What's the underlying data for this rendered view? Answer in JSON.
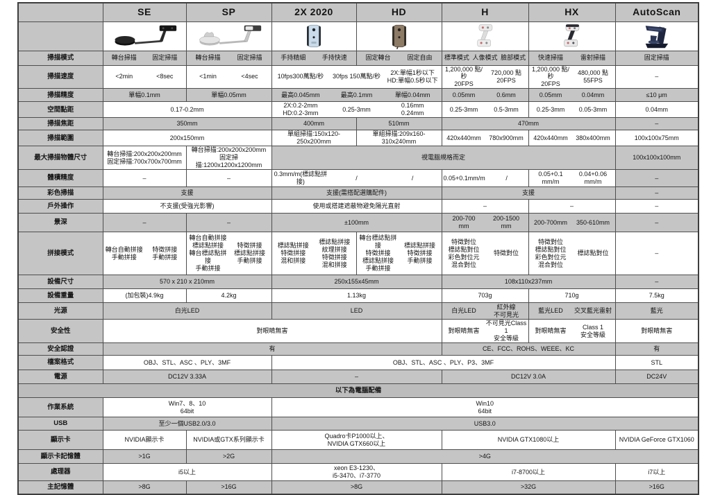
{
  "colors": {
    "row_gray": "#c5c5c5",
    "divider_gray": "#bcbcbc",
    "border": "#4d4d4d",
    "cell_white": "#ffffff"
  },
  "products": [
    {
      "name": "SE",
      "icon": "se-turntable-scanner-icon"
    },
    {
      "name": "SP",
      "icon": "sp-turntable-scanner-icon"
    },
    {
      "name": "2X 2020",
      "icon": "2x-handheld-scanner-icon"
    },
    {
      "name": "HD",
      "icon": "hd-handheld-scanner-icon"
    },
    {
      "name": "H",
      "icon": "h-handheld-scanner-icon"
    },
    {
      "name": "HX",
      "icon": "hx-handheld-scanner-icon"
    },
    {
      "name": "AutoScan",
      "icon": "autoscan-desktop-scanner-icon"
    }
  ],
  "spec_rows": [
    {
      "label": "掃描模式",
      "bg": "g",
      "cells": [
        {
          "span": 1,
          "blocks": [
            "轉台掃描",
            "固定掃描"
          ]
        },
        {
          "span": 1,
          "blocks": [
            "轉台掃描",
            "固定掃描"
          ]
        },
        {
          "span": 1,
          "blocks": [
            "手持精細",
            "手持快速"
          ]
        },
        {
          "span": 1,
          "blocks": [
            "固定轉台",
            "固定自由"
          ]
        },
        {
          "span": 1,
          "blocks": [
            "標準模式",
            "人像模式",
            "臉部模式"
          ]
        },
        {
          "span": 1,
          "blocks": [
            "快速掃描",
            "雷射掃描"
          ]
        },
        {
          "span": 1,
          "blocks": [
            "固定掃描"
          ]
        }
      ]
    },
    {
      "label": "掃描速度",
      "bg": "w",
      "cells": [
        {
          "span": 1,
          "blocks": [
            "<2min",
            "<8sec"
          ]
        },
        {
          "span": 1,
          "blocks": [
            "<1min",
            "<4sec"
          ]
        },
        {
          "span": 2,
          "blocks": [
            "10fps300萬點/秒",
            "30fps 150萬點/秒",
            "2X:單幅1秒以下\nHD:單幅0.5秒以下"
          ]
        },
        {
          "span": 1,
          "blocks": [
            "1,200,000 點/秒\n20FPS",
            "720,000 點\n20FPS"
          ]
        },
        {
          "span": 1,
          "blocks": [
            "1,200,000 點/秒\n20FPS",
            "480,000 點\n55FPS"
          ]
        },
        {
          "span": 1,
          "blocks": [
            "–"
          ]
        }
      ]
    },
    {
      "label": "掃描精度",
      "bg": "g",
      "cells": [
        {
          "span": 1,
          "blocks": [
            "單幅0.1mm"
          ]
        },
        {
          "span": 1,
          "blocks": [
            "單幅0.05mm"
          ]
        },
        {
          "span": 2,
          "blocks": [
            "最高0.045mm",
            "最高0.1mm",
            "單幅0.04mm"
          ]
        },
        {
          "span": 1,
          "blocks": [
            "0.05mm",
            "0.6mm"
          ]
        },
        {
          "span": 1,
          "blocks": [
            "0.05mm",
            "0.04mm"
          ]
        },
        {
          "span": 1,
          "blocks": [
            "≤10 μm"
          ]
        }
      ]
    },
    {
      "label": "空間點距",
      "bg": "w",
      "cells": [
        {
          "span": 2,
          "blocks": [
            "0.17-0.2mm"
          ]
        },
        {
          "span": 2,
          "blocks": [
            "2X:0.2-2mm\nHD:0.2-3mm",
            "0.25-3mm",
            "0.16mm\n0.24mm"
          ]
        },
        {
          "span": 1,
          "blocks": [
            "0.25-3mm",
            "0.5-3mm"
          ]
        },
        {
          "span": 1,
          "blocks": [
            "0.25-3mm",
            "0.05-3mm"
          ]
        },
        {
          "span": 1,
          "blocks": [
            "0.04mm"
          ]
        }
      ]
    },
    {
      "label": "掃描焦距",
      "bg": "g",
      "cells": [
        {
          "span": 2,
          "blocks": [
            "350mm"
          ]
        },
        {
          "span": 1,
          "blocks": [
            "400mm"
          ]
        },
        {
          "span": 1,
          "blocks": [
            "510mm"
          ]
        },
        {
          "span": 2,
          "blocks": [
            "470mm"
          ]
        },
        {
          "span": 1,
          "blocks": [
            "–"
          ]
        }
      ]
    },
    {
      "label": "掃描範圍",
      "bg": "w",
      "cells": [
        {
          "span": 2,
          "blocks": [
            "200x150mm"
          ]
        },
        {
          "span": 1,
          "blocks": [
            "單組掃描:150x120-250x200mm"
          ]
        },
        {
          "span": 1,
          "blocks": [
            "單組掃描:209x160-310x240mm"
          ]
        },
        {
          "span": 1,
          "blocks": [
            "420x440mm",
            "780x900mm"
          ]
        },
        {
          "span": 1,
          "blocks": [
            "420x440mm",
            "380x400mm"
          ]
        },
        {
          "span": 1,
          "blocks": [
            "100x100x75mm"
          ]
        }
      ]
    },
    {
      "label": "最大掃描物體尺寸",
      "bg": "g",
      "cells": [
        {
          "span": 1,
          "bg": "w",
          "blocks": [
            "轉台掃描:200x200x200mm\n固定掃描:700x700x700mm"
          ]
        },
        {
          "span": 1,
          "bg": "w",
          "blocks": [
            "轉台掃描:200x200x200mm\n固定掃描:1200x1200x1200mm"
          ]
        },
        {
          "span": 4,
          "blocks": [
            "視電腦規格而定"
          ]
        },
        {
          "span": 1,
          "blocks": [
            "100x100x100mm"
          ]
        }
      ]
    },
    {
      "label": "體積精度",
      "bg": "w",
      "cells": [
        {
          "span": 1,
          "blocks": [
            "–"
          ]
        },
        {
          "span": 1,
          "blocks": [
            "–"
          ]
        },
        {
          "span": 2,
          "blocks": [
            "0.3mm/m(標誌點拼接)",
            "/",
            "/"
          ]
        },
        {
          "span": 1,
          "blocks": [
            "0.05+0.1mm/m",
            "/"
          ]
        },
        {
          "span": 1,
          "blocks": [
            "0.05+0.1\nmm/m",
            "0.04+0.06\nmm/m"
          ]
        },
        {
          "span": 1,
          "bg": "g",
          "blocks": [
            "–"
          ]
        }
      ]
    },
    {
      "label": "彩色掃描",
      "bg": "g",
      "cells": [
        {
          "span": 2,
          "blocks": [
            "支援"
          ]
        },
        {
          "span": 2,
          "blocks": [
            "支援(需搭配選購配件)"
          ]
        },
        {
          "span": 2,
          "blocks": [
            "支援"
          ]
        },
        {
          "span": 1,
          "blocks": [
            "–"
          ]
        }
      ]
    },
    {
      "label": "戶外操作",
      "bg": "w",
      "cells": [
        {
          "span": 2,
          "blocks": [
            "不支援(受強光影響)"
          ]
        },
        {
          "span": 2,
          "blocks": [
            "使用或搭建遮蔽物避免陽光直射"
          ]
        },
        {
          "span": 1,
          "blocks": [
            "–"
          ]
        },
        {
          "span": 1,
          "blocks": [
            "–"
          ]
        },
        {
          "span": 1,
          "blocks": [
            "–"
          ]
        }
      ]
    },
    {
      "label": "景深",
      "bg": "g",
      "cells": [
        {
          "span": 1,
          "blocks": [
            "–"
          ]
        },
        {
          "span": 1,
          "blocks": [
            "–"
          ]
        },
        {
          "span": 2,
          "blocks": [
            "±100mm"
          ]
        },
        {
          "span": 1,
          "blocks": [
            "200-700\nmm",
            "200-1500\nmm"
          ]
        },
        {
          "span": 1,
          "blocks": [
            "200-700mm",
            "350-610mm"
          ]
        },
        {
          "span": 1,
          "blocks": [
            "–"
          ]
        }
      ]
    },
    {
      "label": "拼接模式",
      "bg": "w",
      "cells": [
        {
          "span": 1,
          "blocks": [
            "轉台自動拼接\n手動拼接",
            "特徵拼接\n手動拼接"
          ]
        },
        {
          "span": 1,
          "blocks": [
            "轉台自動拼接\n標誌點拼接\n轉台標誌點拼接\n手動拼接",
            "特徵拼接\n標誌點拼接\n手動拼接"
          ]
        },
        {
          "span": 1,
          "blocks": [
            "標誌點拼接\n特徵拼接\n混和拼接",
            "標誌點拼接\n紋理拼接\n特徵拼接\n混和拼接"
          ]
        },
        {
          "span": 1,
          "blocks": [
            "轉台標誌點拼接\n特徵拼接\n標誌點拼接\n手動拼接",
            "標誌點拼接\n特徵拼接\n手動拼接"
          ]
        },
        {
          "span": 1,
          "blocks": [
            "特徵對位\n標誌點對位\n彩色對位元\n混合對位",
            "特徵對位"
          ]
        },
        {
          "span": 1,
          "blocks": [
            "特徵對位\n標誌點對位\n彩色對位元\n混合對位",
            "標誌點對位"
          ]
        },
        {
          "span": 1,
          "blocks": [
            "–"
          ]
        }
      ]
    },
    {
      "label": "設備尺寸",
      "bg": "g",
      "cells": [
        {
          "span": 2,
          "blocks": [
            "570 x 210 x 210mm"
          ]
        },
        {
          "span": 2,
          "blocks": [
            "250x155x45mm"
          ]
        },
        {
          "span": 2,
          "blocks": [
            "108x110x237mm"
          ]
        },
        {
          "span": 1,
          "blocks": [
            "–"
          ]
        }
      ]
    },
    {
      "label": "設備重量",
      "bg": "w",
      "cells": [
        {
          "span": 1,
          "blocks": [
            "(加包裝)4.9kg"
          ]
        },
        {
          "span": 1,
          "blocks": [
            "4.2kg"
          ]
        },
        {
          "span": 2,
          "blocks": [
            "1.13kg"
          ]
        },
        {
          "span": 1,
          "blocks": [
            "703g"
          ]
        },
        {
          "span": 1,
          "blocks": [
            "710g"
          ]
        },
        {
          "span": 1,
          "blocks": [
            "7.5kg"
          ]
        }
      ]
    },
    {
      "label": "光源",
      "bg": "g",
      "cells": [
        {
          "span": 2,
          "blocks": [
            "白光LED"
          ]
        },
        {
          "span": 2,
          "blocks": [
            "LED"
          ]
        },
        {
          "span": 1,
          "blocks": [
            "白光LED",
            "紅外線\n不可見光"
          ]
        },
        {
          "span": 1,
          "blocks": [
            "藍光LED",
            "交叉藍光雷射"
          ]
        },
        {
          "span": 1,
          "blocks": [
            "藍光"
          ]
        }
      ]
    },
    {
      "label": "安全性",
      "bg": "w",
      "cells": [
        {
          "span": 4,
          "blocks": [
            "對眼睛無害"
          ]
        },
        {
          "span": 1,
          "blocks": [
            "對眼睛無害",
            "不可見光Class 1\n安全等級"
          ]
        },
        {
          "span": 1,
          "blocks": [
            "對眼睛無害",
            "Class 1\n安全等級"
          ]
        },
        {
          "span": 1,
          "blocks": [
            "對眼睛無害"
          ]
        }
      ]
    },
    {
      "label": "安全認證",
      "bg": "g",
      "cells": [
        {
          "span": 4,
          "blocks": [
            "有"
          ]
        },
        {
          "span": 2,
          "blocks": [
            "CE、FCC、ROHS、WEEE、KC"
          ]
        },
        {
          "span": 1,
          "blocks": [
            "有"
          ]
        }
      ]
    },
    {
      "label": "檔案格式",
      "bg": "w",
      "cells": [
        {
          "span": 2,
          "blocks": [
            "OBJ、STL、ASC 、PLY、3MF"
          ]
        },
        {
          "span": 4,
          "blocks": [
            "OBJ、STL、ASC 、PLY、P3、3MF"
          ]
        },
        {
          "span": 1,
          "blocks": [
            "STL"
          ]
        }
      ]
    },
    {
      "label": "電源",
      "bg": "g",
      "cells": [
        {
          "span": 2,
          "blocks": [
            "DC12V 3.33A"
          ]
        },
        {
          "span": 2,
          "blocks": [
            "–"
          ]
        },
        {
          "span": 2,
          "blocks": [
            "DC12V 3.0A"
          ]
        },
        {
          "span": 1,
          "blocks": [
            "DC24V"
          ]
        }
      ]
    },
    {
      "divider": true,
      "label": "以下為電腦配備"
    },
    {
      "label": "作業系統",
      "bg": "w",
      "cells": [
        {
          "span": 2,
          "blocks": [
            "Win7、8、10\n64bit"
          ]
        },
        {
          "span": 5,
          "blocks": [
            "Win10\n64bit"
          ]
        }
      ]
    },
    {
      "label": "USB",
      "bg": "g",
      "cells": [
        {
          "span": 2,
          "blocks": [
            "至少一個USB2.0/3.0"
          ]
        },
        {
          "span": 5,
          "blocks": [
            "USB3.0"
          ]
        }
      ]
    },
    {
      "label": "顯示卡",
      "bg": "w",
      "cells": [
        {
          "span": 1,
          "blocks": [
            "NVIDIA顯示卡"
          ]
        },
        {
          "span": 1,
          "blocks": [
            "NVIDIA或GTX系列顯示卡"
          ]
        },
        {
          "span": 2,
          "blocks": [
            "Quadro卡P1000以上、\nNVIDIA GTX660以上"
          ]
        },
        {
          "span": 2,
          "blocks": [
            "NVIDIA GTX1080以上"
          ]
        },
        {
          "span": 1,
          "blocks": [
            "NVIDIA GeForce GTX1060"
          ]
        }
      ]
    },
    {
      "label": "顯示卡記憶體",
      "bg": "g",
      "cells": [
        {
          "span": 1,
          "blocks": [
            ">1G"
          ]
        },
        {
          "span": 1,
          "blocks": [
            ">2G"
          ]
        },
        {
          "span": 5,
          "blocks": [
            ">4G"
          ]
        }
      ]
    },
    {
      "label": "處理器",
      "bg": "w",
      "cells": [
        {
          "span": 2,
          "blocks": [
            "i5以上"
          ]
        },
        {
          "span": 2,
          "blocks": [
            "xeon E3-1230、\ni5-3470、i7-3770"
          ]
        },
        {
          "span": 2,
          "blocks": [
            "i7-8700以上"
          ]
        },
        {
          "span": 1,
          "blocks": [
            "i7以上"
          ]
        }
      ]
    },
    {
      "label": "主記憶體",
      "bg": "g",
      "cells": [
        {
          "span": 1,
          "blocks": [
            ">8G"
          ]
        },
        {
          "span": 1,
          "blocks": [
            ">16G"
          ]
        },
        {
          "span": 2,
          "blocks": [
            ">8G"
          ]
        },
        {
          "span": 2,
          "blocks": [
            ">32G"
          ]
        },
        {
          "span": 1,
          "blocks": [
            ">16G"
          ]
        }
      ]
    }
  ]
}
